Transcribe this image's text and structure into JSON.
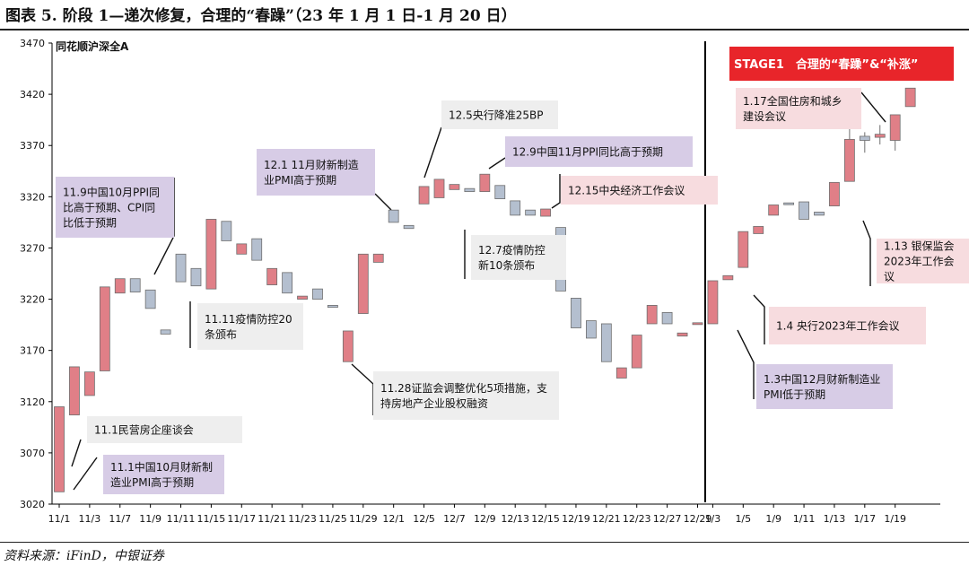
{
  "page": {
    "title": "图表 5. 阶段 1—递次修复，合理的“春躁”（23 年 1 月 1 日-1 月 20 日）",
    "source": "资料来源：iFinD，中银证券"
  },
  "colors": {
    "up": "#e07f87",
    "down": "#b4bfcf",
    "outline": "#6f6f6f",
    "box_gray": "#eeeeee",
    "box_purple": "#d7cce6",
    "box_pink": "#f7dcdf",
    "stage_bg": "#e8252a"
  },
  "chart_data": {
    "type": "candlestick",
    "series_name": "同花顺沪深全A",
    "ylim": [
      3020,
      3470
    ],
    "yticks": [
      3020,
      3070,
      3120,
      3170,
      3220,
      3270,
      3320,
      3370,
      3420,
      3470
    ],
    "x_ticks": [
      "11/1",
      "11/3",
      "11/7",
      "11/9",
      "11/11",
      "11/15",
      "11/17",
      "11/21",
      "11/23",
      "11/25",
      "11/29",
      "12/1",
      "12/5",
      "12/7",
      "12/9",
      "12/13",
      "12/15",
      "12/19",
      "12/21",
      "12/23",
      "12/27",
      "12/29",
      "1/3",
      "1/5",
      "1/9",
      "1/11",
      "1/13",
      "1/17",
      "1/19"
    ],
    "candles": [
      {
        "x": "11/1",
        "o": 3032,
        "h": 3115,
        "l": 3032,
        "c": 3115
      },
      {
        "x": "11/2",
        "o": 3107,
        "h": 3154,
        "l": 3107,
        "c": 3154
      },
      {
        "x": "11/3",
        "o": 3126,
        "h": 3149,
        "l": 3126,
        "c": 3149
      },
      {
        "x": "11/4",
        "o": 3150,
        "h": 3232,
        "l": 3150,
        "c": 3232
      },
      {
        "x": "11/7",
        "o": 3226,
        "h": 3240,
        "l": 3226,
        "c": 3240
      },
      {
        "x": "11/8",
        "o": 3240,
        "h": 3240,
        "l": 3227,
        "c": 3227
      },
      {
        "x": "11/9",
        "o": 3229,
        "h": 3229,
        "l": 3211,
        "c": 3211
      },
      {
        "x": "11/10",
        "o": 3190,
        "h": 3190,
        "l": 3186,
        "c": 3186
      },
      {
        "x": "11/11",
        "o": 3264,
        "h": 3264,
        "l": 3237,
        "c": 3237
      },
      {
        "x": "11/14",
        "o": 3250,
        "h": 3250,
        "l": 3233,
        "c": 3233
      },
      {
        "x": "11/15",
        "o": 3230,
        "h": 3298,
        "l": 3230,
        "c": 3298
      },
      {
        "x": "11/16",
        "o": 3296,
        "h": 3296,
        "l": 3277,
        "c": 3277
      },
      {
        "x": "11/17",
        "o": 3264,
        "h": 3274,
        "l": 3264,
        "c": 3274
      },
      {
        "x": "11/18",
        "o": 3279,
        "h": 3279,
        "l": 3258,
        "c": 3258
      },
      {
        "x": "11/21",
        "o": 3234,
        "h": 3250,
        "l": 3234,
        "c": 3250
      },
      {
        "x": "11/22",
        "o": 3246,
        "h": 3246,
        "l": 3226,
        "c": 3226
      },
      {
        "x": "11/23",
        "o": 3220,
        "h": 3223,
        "l": 3220,
        "c": 3223
      },
      {
        "x": "11/24",
        "o": 3230,
        "h": 3230,
        "l": 3220,
        "c": 3220
      },
      {
        "x": "11/25",
        "o": 3214,
        "h": 3214,
        "l": 3212,
        "c": 3212
      },
      {
        "x": "11/28",
        "o": 3159,
        "h": 3189,
        "l": 3159,
        "c": 3189
      },
      {
        "x": "11/29",
        "o": 3206,
        "h": 3264,
        "l": 3206,
        "c": 3264
      },
      {
        "x": "11/30",
        "o": 3256,
        "h": 3264,
        "l": 3256,
        "c": 3264
      },
      {
        "x": "12/1",
        "o": 3307,
        "h": 3307,
        "l": 3295,
        "c": 3295
      },
      {
        "x": "12/2",
        "o": 3292,
        "h": 3292,
        "l": 3289,
        "c": 3289
      },
      {
        "x": "12/5",
        "o": 3313,
        "h": 3330,
        "l": 3313,
        "c": 3330
      },
      {
        "x": "12/6",
        "o": 3319,
        "h": 3337,
        "l": 3319,
        "c": 3337
      },
      {
        "x": "12/7",
        "o": 3327,
        "h": 3332,
        "l": 3327,
        "c": 3332
      },
      {
        "x": "12/8",
        "o": 3328,
        "h": 3328,
        "l": 3325,
        "c": 3325
      },
      {
        "x": "12/9",
        "o": 3325,
        "h": 3342,
        "l": 3325,
        "c": 3342
      },
      {
        "x": "12/12",
        "o": 3331,
        "h": 3331,
        "l": 3318,
        "c": 3318
      },
      {
        "x": "12/13",
        "o": 3316,
        "h": 3316,
        "l": 3302,
        "c": 3302
      },
      {
        "x": "12/14",
        "o": 3307,
        "h": 3307,
        "l": 3302,
        "c": 3302
      },
      {
        "x": "12/15",
        "o": 3301,
        "h": 3308,
        "l": 3301,
        "c": 3308
      },
      {
        "x": "12/16",
        "o": 3290,
        "h": 3290,
        "l": 3228,
        "c": 3228
      },
      {
        "x": "12/19",
        "o": 3221,
        "h": 3221,
        "l": 3192,
        "c": 3192
      },
      {
        "x": "12/20",
        "o": 3199,
        "h": 3199,
        "l": 3182,
        "c": 3182
      },
      {
        "x": "12/21",
        "o": 3196,
        "h": 3196,
        "l": 3159,
        "c": 3159
      },
      {
        "x": "12/22",
        "o": 3143,
        "h": 3153,
        "l": 3143,
        "c": 3153
      },
      {
        "x": "12/23",
        "o": 3153,
        "h": 3185,
        "l": 3153,
        "c": 3185
      },
      {
        "x": "12/26",
        "o": 3196,
        "h": 3214,
        "l": 3196,
        "c": 3214
      },
      {
        "x": "12/27",
        "o": 3207,
        "h": 3207,
        "l": 3196,
        "c": 3196
      },
      {
        "x": "12/28",
        "o": 3184,
        "h": 3187,
        "l": 3184,
        "c": 3187
      },
      {
        "x": "12/29",
        "o": 3196,
        "h": 3197,
        "l": 3196,
        "c": 3197
      },
      {
        "x": "1/3",
        "o": 3196,
        "h": 3238,
        "l": 3196,
        "c": 3238
      },
      {
        "x": "1/4",
        "o": 3239,
        "h": 3243,
        "l": 3239,
        "c": 3243
      },
      {
        "x": "1/5",
        "o": 3251,
        "h": 3286,
        "l": 3251,
        "c": 3286
      },
      {
        "x": "1/6",
        "o": 3284,
        "h": 3291,
        "l": 3284,
        "c": 3291
      },
      {
        "x": "1/9",
        "o": 3302,
        "h": 3312,
        "l": 3302,
        "c": 3312
      },
      {
        "x": "1/10",
        "o": 3314,
        "h": 3314,
        "l": 3313,
        "c": 3313
      },
      {
        "x": "1/11",
        "o": 3315,
        "h": 3315,
        "l": 3298,
        "c": 3298
      },
      {
        "x": "1/12",
        "o": 3305,
        "h": 3305,
        "l": 3302,
        "c": 3302
      },
      {
        "x": "1/13",
        "o": 3311,
        "h": 3334,
        "l": 3311,
        "c": 3334
      },
      {
        "x": "1/16",
        "o": 3335,
        "h": 3398,
        "l": 3335,
        "c": 3376
      },
      {
        "x": "1/17",
        "o": 3379,
        "h": 3383,
        "l": 3363,
        "c": 3375
      },
      {
        "x": "1/18",
        "o": 3378,
        "h": 3390,
        "l": 3371,
        "c": 3381
      },
      {
        "x": "1/19",
        "o": 3375,
        "h": 3400,
        "l": 3365,
        "c": 3400
      },
      {
        "x": "1/20",
        "o": 3408,
        "h": 3426,
        "l": 3408,
        "c": 3426
      }
    ],
    "stage_divider_after": "12/29",
    "stage_label": "STAGE1　合理的“春躁”&“补涨”",
    "annotations": [
      {
        "text": "11.1民营房企座谈会",
        "style": "gray"
      },
      {
        "text": "11.1中国10月财新制造业PMI高于预期",
        "style": "purple"
      },
      {
        "text": "11.9中国10月PPI同比高于预期、CPI同比低于预期",
        "style": "purple"
      },
      {
        "text": "11.11疫情防控20条颁布",
        "style": "gray"
      },
      {
        "text": "11.28证监会调整优化5项措施，支持房地产企业股权融资",
        "style": "gray"
      },
      {
        "text": "12.1 11月财新制造业PMI高于预期",
        "style": "purple"
      },
      {
        "text": "12.5央行降准25BP",
        "style": "gray"
      },
      {
        "text": "12.9中国11月PPI同比高于预期",
        "style": "purple"
      },
      {
        "text": "12.15中央经济工作会议",
        "style": "pink"
      },
      {
        "text": "12.7疫情防控新10条颁布",
        "style": "gray"
      },
      {
        "text": "1.3中国12月财新制造业PMI低于预期",
        "style": "purple"
      },
      {
        "text": "1.4 央行2023年工作会议",
        "style": "pink"
      },
      {
        "text": "1.13 银保监会2023年工作会议",
        "style": "pink"
      },
      {
        "text": "1.17全国住房和城乡建设会议",
        "style": "pink"
      }
    ]
  }
}
